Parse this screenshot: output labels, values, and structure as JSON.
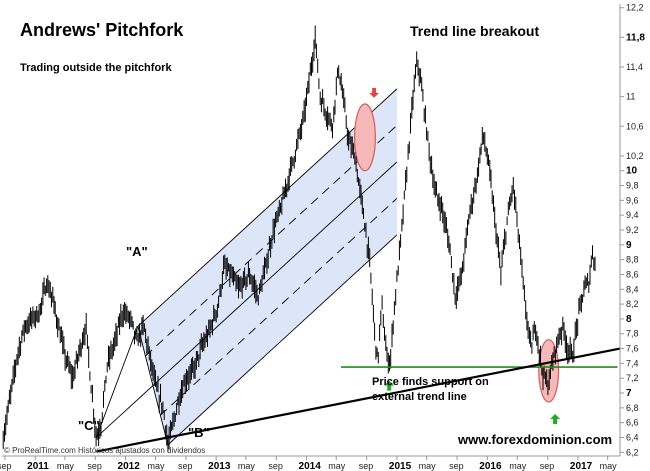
{
  "chart_data": {
    "type": "line",
    "title": "Andrews' Pitchfork",
    "subtitle": "Trading outside the pitchfork",
    "annotations": {
      "breakout": "Trend line breakout",
      "support_line1": "Price finds support on",
      "support_line2": "external trend line",
      "point_a": "\"A\"",
      "point_b": "\"B\"",
      "point_c": "\"C\""
    },
    "watermark": "www.forexdominion.com",
    "credit": "© ProRealTime.com Históricos ajustados con dividendos",
    "y_axis": {
      "side": "right",
      "ylim": [
        6.15,
        12.25
      ],
      "ticks": [
        {
          "v": 6.2,
          "label": "6,2",
          "bold": false
        },
        {
          "v": 6.4,
          "label": "6,4",
          "bold": false
        },
        {
          "v": 6.6,
          "label": "6,6",
          "bold": false
        },
        {
          "v": 6.8,
          "label": "6,8",
          "bold": false
        },
        {
          "v": 7.0,
          "label": "7",
          "bold": true
        },
        {
          "v": 7.2,
          "label": "7,2",
          "bold": false
        },
        {
          "v": 7.4,
          "label": "7,4",
          "bold": false
        },
        {
          "v": 7.6,
          "label": "7,6",
          "bold": false
        },
        {
          "v": 7.8,
          "label": "7,8",
          "bold": false
        },
        {
          "v": 8.0,
          "label": "8",
          "bold": true
        },
        {
          "v": 8.2,
          "label": "8,2",
          "bold": false
        },
        {
          "v": 8.4,
          "label": "8,4",
          "bold": false
        },
        {
          "v": 8.6,
          "label": "8,6",
          "bold": false
        },
        {
          "v": 8.8,
          "label": "8,8",
          "bold": false
        },
        {
          "v": 9.0,
          "label": "9",
          "bold": true
        },
        {
          "v": 9.2,
          "label": "9,2",
          "bold": false
        },
        {
          "v": 9.4,
          "label": "9,4",
          "bold": false
        },
        {
          "v": 9.6,
          "label": "9,6",
          "bold": false
        },
        {
          "v": 9.8,
          "label": "9,8",
          "bold": false
        },
        {
          "v": 10.0,
          "label": "10",
          "bold": true
        },
        {
          "v": 10.2,
          "label": "10,2",
          "bold": false
        },
        {
          "v": 10.6,
          "label": "10,6",
          "bold": false
        },
        {
          "v": 11.0,
          "label": "11",
          "bold": false
        },
        {
          "v": 11.4,
          "label": "11,4",
          "bold": false
        },
        {
          "v": 11.8,
          "label": "11,8",
          "bold": true
        },
        {
          "v": 12.2,
          "label": "12,2",
          "bold": false
        }
      ]
    },
    "x_axis": {
      "xlim": [
        "2010-08-20",
        "2017-06-20"
      ],
      "ticks": [
        {
          "date": "2010-09-01",
          "label": "sep",
          "bold": false
        },
        {
          "date": "2011-01-01",
          "label": "2011",
          "bold": true
        },
        {
          "date": "2011-05-01",
          "label": "may",
          "bold": false
        },
        {
          "date": "2011-09-01",
          "label": "sep",
          "bold": false
        },
        {
          "date": "2012-01-01",
          "label": "2012",
          "bold": true
        },
        {
          "date": "2012-05-01",
          "label": "may",
          "bold": false
        },
        {
          "date": "2012-09-01",
          "label": "sep",
          "bold": false
        },
        {
          "date": "2013-01-01",
          "label": "2013",
          "bold": true
        },
        {
          "date": "2013-05-01",
          "label": "may",
          "bold": false
        },
        {
          "date": "2013-09-01",
          "label": "sep",
          "bold": false
        },
        {
          "date": "2014-01-01",
          "label": "2014",
          "bold": true
        },
        {
          "date": "2014-05-01",
          "label": "may",
          "bold": false
        },
        {
          "date": "2014-09-01",
          "label": "sep",
          "bold": false
        },
        {
          "date": "2015-01-01",
          "label": "2015",
          "bold": true
        },
        {
          "date": "2015-05-01",
          "label": "may",
          "bold": false
        },
        {
          "date": "2015-09-01",
          "label": "sep",
          "bold": false
        },
        {
          "date": "2016-01-01",
          "label": "2016",
          "bold": true
        },
        {
          "date": "2016-05-01",
          "label": "may",
          "bold": false
        },
        {
          "date": "2016-09-01",
          "label": "sep",
          "bold": false
        },
        {
          "date": "2017-01-01",
          "label": "2017",
          "bold": true
        },
        {
          "date": "2017-05-01",
          "label": "may",
          "bold": false
        }
      ]
    },
    "price_path": [
      [
        "2010-08-25",
        6.4
      ],
      [
        "2010-09-20",
        6.9
      ],
      [
        "2010-10-20",
        7.5
      ],
      [
        "2010-11-20",
        7.9
      ],
      [
        "2010-12-20",
        8.0
      ],
      [
        "2011-01-20",
        8.1
      ],
      [
        "2011-02-15",
        8.5
      ],
      [
        "2011-03-10",
        8.3
      ],
      [
        "2011-04-05",
        7.9
      ],
      [
        "2011-05-01",
        7.5
      ],
      [
        "2011-06-01",
        7.2
      ],
      [
        "2011-07-01",
        7.6
      ],
      [
        "2011-07-25",
        7.9
      ],
      [
        "2011-08-15",
        7.1
      ],
      [
        "2011-09-05",
        6.4
      ],
      [
        "2011-09-25",
        6.6
      ],
      [
        "2011-10-20",
        7.4
      ],
      [
        "2011-11-20",
        7.7
      ],
      [
        "2011-12-20",
        8.1
      ],
      [
        "2012-01-20",
        8.0
      ],
      [
        "2012-02-15",
        7.7
      ],
      [
        "2012-03-15",
        7.9
      ],
      [
        "2012-04-01",
        7.6
      ],
      [
        "2012-05-01",
        7.1
      ],
      [
        "2012-06-01",
        6.8
      ],
      [
        "2012-06-20",
        6.3
      ],
      [
        "2012-07-05",
        6.5
      ],
      [
        "2012-08-01",
        6.9
      ],
      [
        "2012-09-01",
        7.2
      ],
      [
        "2012-10-01",
        7.3
      ],
      [
        "2012-11-01",
        7.6
      ],
      [
        "2012-12-01",
        7.8
      ],
      [
        "2013-01-10",
        8.2
      ],
      [
        "2013-02-01",
        8.7
      ],
      [
        "2013-03-01",
        8.6
      ],
      [
        "2013-04-01",
        8.4
      ],
      [
        "2013-05-15",
        8.6
      ],
      [
        "2013-06-20",
        8.3
      ],
      [
        "2013-07-20",
        8.7
      ],
      [
        "2013-08-20",
        9.2
      ],
      [
        "2013-09-20",
        9.5
      ],
      [
        "2013-10-20",
        9.9
      ],
      [
        "2013-11-20",
        10.3
      ],
      [
        "2013-12-20",
        10.7
      ],
      [
        "2014-01-20",
        11.4
      ],
      [
        "2014-02-05",
        11.8
      ],
      [
        "2014-02-25",
        11.0
      ],
      [
        "2014-03-20",
        10.8
      ],
      [
        "2014-04-15",
        10.6
      ],
      [
        "2014-05-10",
        11.4
      ],
      [
        "2014-06-01",
        10.9
      ],
      [
        "2014-06-20",
        10.4
      ],
      [
        "2014-07-15",
        10.2
      ],
      [
        "2014-08-01",
        9.8
      ],
      [
        "2014-08-20",
        9.4
      ],
      [
        "2014-09-15",
        8.7
      ],
      [
        "2014-10-01",
        7.9
      ],
      [
        "2014-10-15",
        7.4
      ],
      [
        "2014-11-01",
        8.2
      ],
      [
        "2014-11-20",
        7.5
      ],
      [
        "2014-12-05",
        7.4
      ],
      [
        "2014-12-20",
        8.1
      ],
      [
        "2015-01-15",
        9.0
      ],
      [
        "2015-02-10",
        10.0
      ],
      [
        "2015-03-10",
        11.1
      ],
      [
        "2015-03-25",
        11.5
      ],
      [
        "2015-04-15",
        11.0
      ],
      [
        "2015-05-10",
        10.3
      ],
      [
        "2015-06-05",
        9.7
      ],
      [
        "2015-07-01",
        9.5
      ],
      [
        "2015-08-01",
        9.0
      ],
      [
        "2015-08-25",
        8.3
      ],
      [
        "2015-09-20",
        8.6
      ],
      [
        "2015-10-20",
        9.4
      ],
      [
        "2015-11-20",
        9.9
      ],
      [
        "2015-12-15",
        10.5
      ],
      [
        "2016-01-10",
        10.0
      ],
      [
        "2016-02-05",
        9.2
      ],
      [
        "2016-02-25",
        8.6
      ],
      [
        "2016-03-20",
        9.3
      ],
      [
        "2016-04-15",
        9.8
      ],
      [
        "2016-05-10",
        9.0
      ],
      [
        "2016-06-01",
        8.2
      ],
      [
        "2016-06-25",
        7.6
      ],
      [
        "2016-07-15",
        7.9
      ],
      [
        "2016-08-10",
        7.3
      ],
      [
        "2016-09-01",
        7.1
      ],
      [
        "2016-09-20",
        7.4
      ],
      [
        "2016-10-10",
        7.7
      ],
      [
        "2016-11-01",
        7.9
      ],
      [
        "2016-11-20",
        7.6
      ],
      [
        "2016-12-10",
        7.5
      ],
      [
        "2017-01-01",
        8.0
      ],
      [
        "2017-01-25",
        8.4
      ],
      [
        "2017-02-15",
        8.5
      ],
      [
        "2017-03-01",
        8.9
      ],
      [
        "2017-03-15",
        8.7
      ]
    ],
    "pitchfork": {
      "point_a": [
        "2012-02-20",
        7.9
      ],
      "point_b": [
        "2012-06-20",
        6.3
      ],
      "point_c": [
        "2011-09-05",
        6.4
      ],
      "channel_fill": "#dde5f8",
      "line_color": "#000000"
    },
    "support_level": {
      "y": 7.35,
      "from": "2014-05-20",
      "to": "2017-06-10",
      "color": "#228b22"
    },
    "external_trend_line": {
      "from": [
        "2011-09-05",
        6.21
      ],
      "to": [
        "2017-06-20",
        7.6
      ],
      "color": "#000000"
    },
    "highlights": [
      {
        "center": [
          "2014-08-25",
          10.45
        ],
        "rx_days": 42,
        "ry": 0.45,
        "fill": "#f6b8b8",
        "stroke": "#d85b5b"
      },
      {
        "center": [
          "2016-09-05",
          7.3
        ],
        "rx_days": 40,
        "ry": 0.42,
        "fill": "#f6b8b8",
        "stroke": "#d85b5b"
      }
    ],
    "arrows": [
      {
        "at": [
          "2014-10-01",
          11.05
        ],
        "direction": "down",
        "color": "#d94b4b"
      },
      {
        "at": [
          "2014-12-01",
          7.1
        ],
        "direction": "up",
        "color": "#22aa22"
      },
      {
        "at": [
          "2016-10-01",
          6.65
        ],
        "direction": "up",
        "color": "#22aa22"
      }
    ],
    "colors": {
      "price": "#000000",
      "axis": "#999999",
      "background": "#ffffff"
    }
  }
}
